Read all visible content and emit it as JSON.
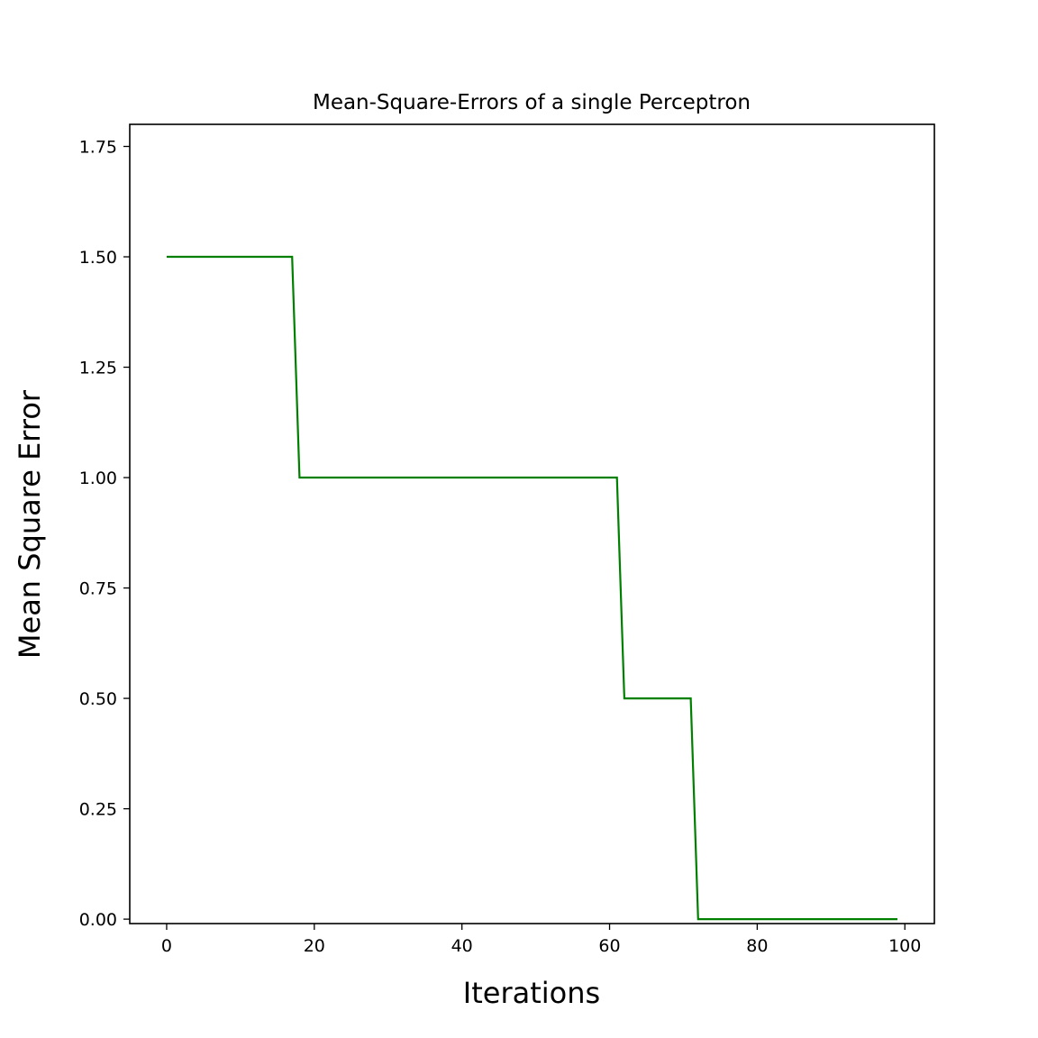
{
  "chart_data": {
    "type": "line",
    "title": "Mean-Square-Errors of a single Perceptron",
    "xlabel": "Iterations",
    "ylabel": "Mean Square Error",
    "xlim": [
      -5,
      104
    ],
    "ylim": [
      -0.01,
      1.8
    ],
    "xticks": [
      0,
      20,
      40,
      60,
      80,
      100
    ],
    "xtick_labels": [
      "0",
      "20",
      "40",
      "60",
      "80",
      "100"
    ],
    "yticks": [
      0.0,
      0.25,
      0.5,
      0.75,
      1.0,
      1.25,
      1.5,
      1.75
    ],
    "ytick_labels": [
      "0.00",
      "0.25",
      "0.50",
      "0.75",
      "1.00",
      "1.25",
      "1.50",
      "1.75"
    ],
    "grid": false,
    "series": [
      {
        "color": "#008000",
        "x": [
          0,
          17,
          18,
          61,
          62,
          71,
          72,
          99
        ],
        "y": [
          1.5,
          1.5,
          1.0,
          1.0,
          0.5,
          0.5,
          0.0,
          0.0
        ]
      }
    ]
  }
}
